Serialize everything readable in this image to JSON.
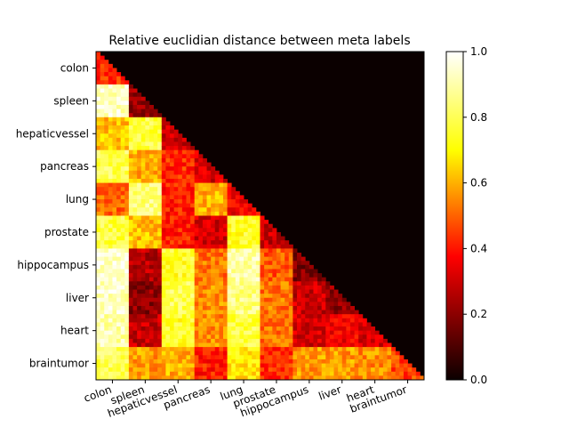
{
  "chart_data": {
    "type": "heatmap",
    "title": "Relative euclidian distance between meta labels",
    "xlabel": "",
    "ylabel": "",
    "labels": [
      "colon",
      "spleen",
      "hepaticvessel",
      "pancreas",
      "lung",
      "prostate",
      "hippocampus",
      "liver",
      "heart",
      "braintumor"
    ],
    "lower_triangle_block_means": [
      [
        0.42
      ],
      [
        0.93,
        0.22
      ],
      [
        0.62,
        0.78,
        0.28
      ],
      [
        0.8,
        0.6,
        0.42,
        0.3
      ],
      [
        0.5,
        0.85,
        0.4,
        0.6,
        0.35
      ],
      [
        0.78,
        0.62,
        0.4,
        0.3,
        0.75,
        0.28
      ],
      [
        0.95,
        0.25,
        0.75,
        0.52,
        0.9,
        0.48,
        0.18
      ],
      [
        0.93,
        0.2,
        0.8,
        0.55,
        0.85,
        0.52,
        0.28,
        0.2
      ],
      [
        0.9,
        0.27,
        0.75,
        0.55,
        0.78,
        0.52,
        0.3,
        0.35,
        0.3
      ],
      [
        0.8,
        0.57,
        0.6,
        0.4,
        0.68,
        0.42,
        0.57,
        0.57,
        0.55,
        0.45
      ]
    ],
    "upper_triangle_value": 0.0,
    "colormap": "hot",
    "colorbar": {
      "range": [
        0.0,
        1.0
      ],
      "ticks": [
        "0.0",
        "0.2",
        "0.4",
        "0.6",
        "0.8",
        "1.0"
      ]
    },
    "grid": false
  }
}
